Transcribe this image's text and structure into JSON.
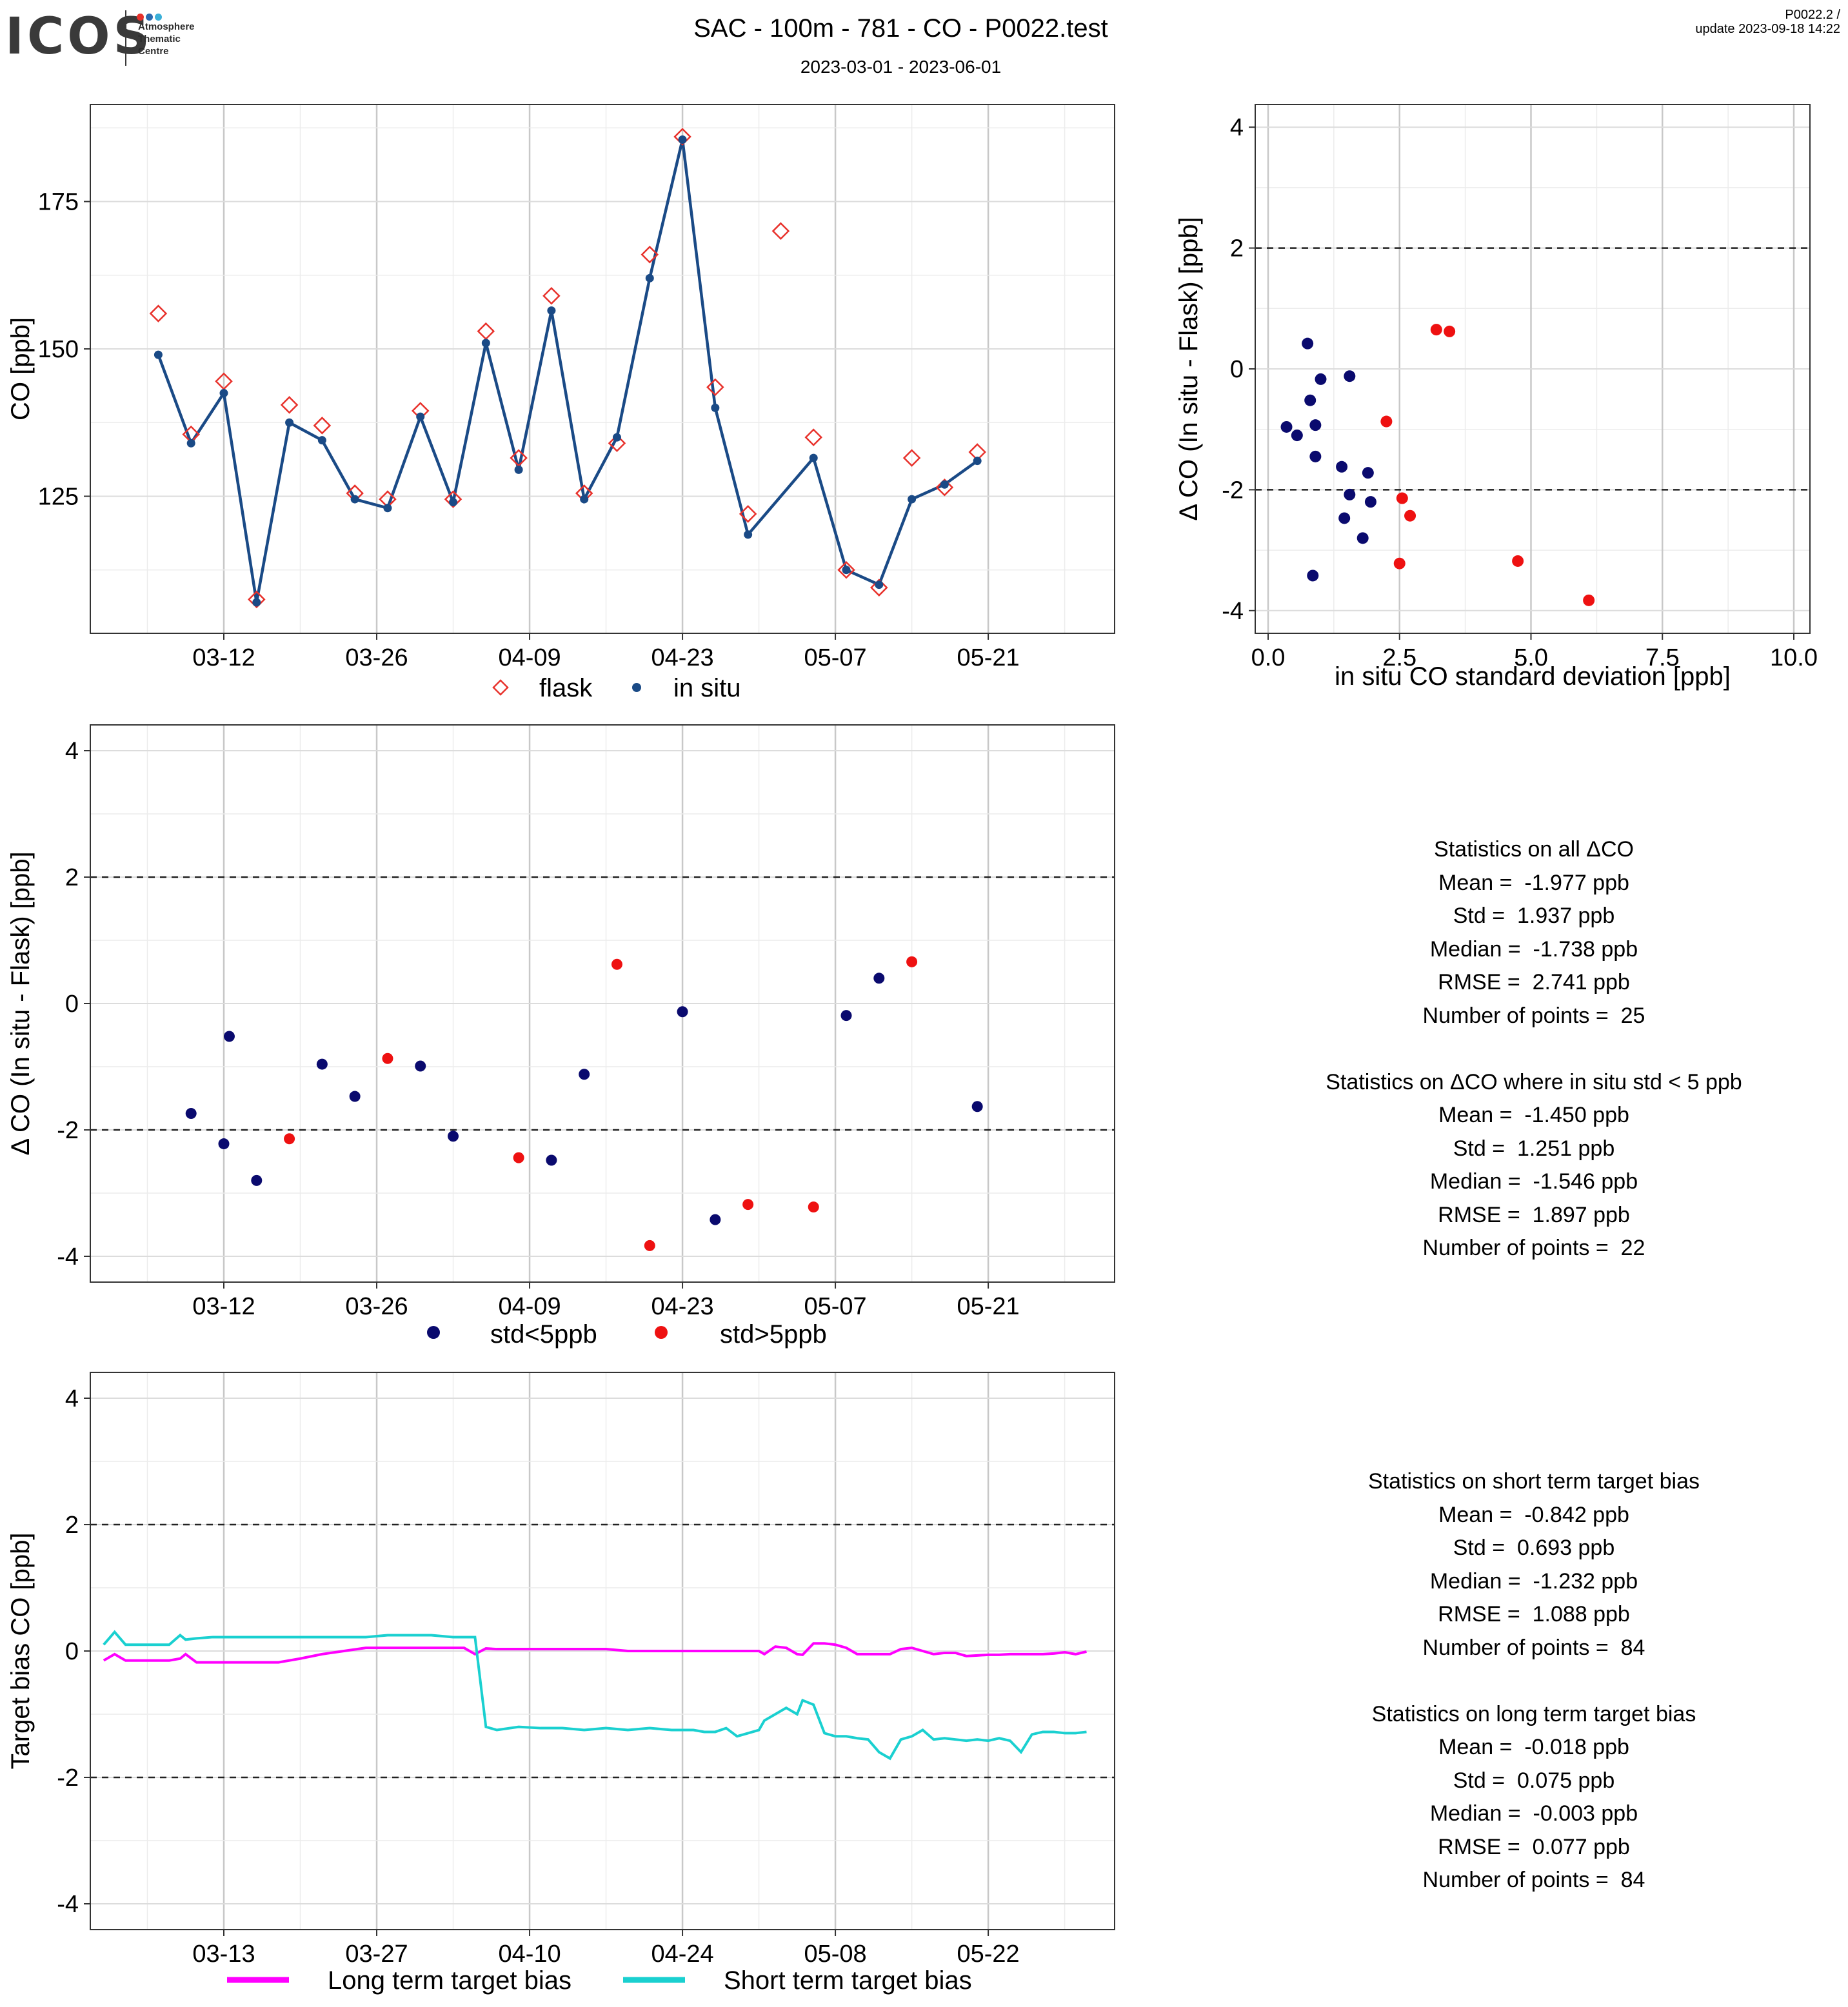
{
  "header": {
    "logo_text": "ICOS",
    "logo_subtext": [
      "Atmosphere",
      "Thematic",
      "Centre"
    ],
    "title": "SAC - 100m - 781 - CO - P0022.test",
    "subtitle": "2023-03-01 - 2023-06-01",
    "version_line1": "P0022.2 /",
    "version_line2": "update  2023-09-18 14:22"
  },
  "colors": {
    "flask": "#e8312b",
    "insitu": "#1a4a86",
    "std_lt5": "#0a0a6e",
    "std_gt5": "#ee1111",
    "long_term": "#ff00ff",
    "short_term": "#1ad0d0",
    "logo_dots": [
      "#e8312b",
      "#2b6cb0",
      "#3bb0d8"
    ]
  },
  "chart_data": [
    {
      "id": "co_timeseries",
      "type": "line",
      "ylabel": "CO [ppb]",
      "xlabel": "",
      "x_ticks": [
        "03-12",
        "03-26",
        "04-09",
        "04-23",
        "05-07",
        "05-21"
      ],
      "y_ticks": [
        125,
        150,
        175
      ],
      "ylim": [
        102,
        192
      ],
      "legend": {
        "position": "bottom",
        "entries": [
          "flask",
          "in situ"
        ]
      },
      "x_unit": "days since 2023-03-01",
      "series": [
        {
          "name": "in situ",
          "style": "line+points",
          "x": [
            5,
            8,
            11,
            14,
            17,
            20,
            23,
            26,
            29,
            32,
            35,
            38,
            41,
            44,
            47,
            50,
            53,
            56,
            59,
            65,
            68,
            71,
            74,
            77,
            80
          ],
          "y": [
            149,
            134,
            142.5,
            107,
            137.5,
            134.5,
            124.5,
            123,
            138.5,
            124,
            151,
            129.5,
            156.5,
            124.5,
            135,
            162,
            185.5,
            140,
            118.5,
            131.5,
            112.5,
            110,
            124.5,
            127,
            131
          ]
        },
        {
          "name": "flask",
          "style": "open-diamonds",
          "x": [
            5,
            8,
            11,
            14,
            17,
            20,
            23,
            26,
            29,
            32,
            35,
            38,
            41,
            44,
            47,
            50,
            53,
            56,
            59,
            62,
            65,
            68,
            71,
            74,
            77,
            80
          ],
          "y": [
            156,
            135.5,
            144.5,
            107.5,
            140.5,
            137,
            125.5,
            124.5,
            139.5,
            124.5,
            153,
            131.5,
            159,
            125.5,
            134,
            166,
            186,
            143.5,
            122,
            170,
            135,
            112.5,
            109.5,
            131.5,
            126.5,
            132.5
          ]
        }
      ]
    },
    {
      "id": "delta_vs_std",
      "type": "scatter",
      "xlabel": "in situ CO standard deviation [ppb]",
      "ylabel": "Δ CO (In situ - Flask) [ppb]",
      "xlim": [
        -0.3,
        10.3
      ],
      "ylim": [
        -4.4,
        4.4
      ],
      "x_ticks": [
        0.0,
        2.5,
        5.0,
        7.5,
        10.0
      ],
      "x_tick_labels": [
        "0.0",
        "2.5",
        "5.0",
        "7.5",
        "10.0"
      ],
      "y_ticks": [
        -4,
        -2,
        0,
        2,
        4
      ],
      "y_tick_labels": [
        "-4",
        "-2",
        "0",
        "2",
        "4"
      ],
      "reference_lines": [
        2,
        -2
      ],
      "series": [
        {
          "name": "std<5ppb",
          "points": [
            [
              0.75,
              0.42
            ],
            [
              0.35,
              -0.96
            ],
            [
              0.55,
              -1.1
            ],
            [
              1.0,
              -0.17
            ],
            [
              0.8,
              -0.52
            ],
            [
              0.9,
              -0.93
            ],
            [
              0.9,
              -1.45
            ],
            [
              1.55,
              -0.12
            ],
            [
              1.4,
              -1.62
            ],
            [
              1.55,
              -2.08
            ],
            [
              1.9,
              -1.72
            ],
            [
              1.95,
              -2.2
            ],
            [
              1.45,
              -2.47
            ],
            [
              1.8,
              -2.8
            ],
            [
              0.85,
              -3.42
            ]
          ]
        },
        {
          "name": "std>5ppb",
          "points": [
            [
              2.25,
              -0.87
            ],
            [
              3.2,
              0.65
            ],
            [
              3.45,
              0.62
            ],
            [
              2.55,
              -2.14
            ],
            [
              2.7,
              -2.43
            ],
            [
              2.5,
              -3.22
            ],
            [
              4.75,
              -3.18
            ],
            [
              6.1,
              -3.83
            ]
          ]
        }
      ]
    },
    {
      "id": "delta_timeseries",
      "type": "scatter",
      "ylabel": "Δ CO (In situ - Flask) [ppb]",
      "xlabel": "",
      "x_ticks": [
        "03-12",
        "03-26",
        "04-09",
        "04-23",
        "05-07",
        "05-21"
      ],
      "y_ticks": [
        -4,
        -2,
        0,
        2,
        4
      ],
      "y_tick_labels": [
        "-4",
        "-2",
        "0",
        "2",
        "4"
      ],
      "ylim": [
        -4.4,
        4.4
      ],
      "reference_lines": [
        2,
        -2
      ],
      "legend": {
        "position": "bottom",
        "entries": [
          "std<5ppb",
          "std>5ppb"
        ]
      },
      "x_unit": "days since 2023-03-01",
      "series": [
        {
          "name": "std<5ppb",
          "x": [
            8,
            11,
            11.5,
            14,
            20,
            23,
            29,
            32,
            41,
            44,
            53,
            56,
            68,
            71,
            80
          ],
          "y": [
            -1.74,
            -2.22,
            -0.52,
            -2.8,
            -0.96,
            -1.47,
            -0.99,
            -2.1,
            -2.48,
            -1.12,
            -0.13,
            -3.42,
            -0.19,
            0.4,
            -1.63
          ]
        },
        {
          "name": "std>5ppb",
          "x": [
            17,
            26,
            38,
            47,
            50,
            59,
            65,
            74
          ],
          "y": [
            -2.14,
            -0.87,
            -2.44,
            0.62,
            -3.83,
            -3.18,
            -3.22,
            0.66
          ]
        }
      ]
    },
    {
      "id": "target_bias",
      "type": "line",
      "ylabel": "Target bias CO [ppb]",
      "xlabel": "",
      "x_ticks": [
        "03-13",
        "03-27",
        "04-10",
        "04-24",
        "05-08",
        "05-22"
      ],
      "y_ticks": [
        -4,
        -2,
        0,
        2,
        4
      ],
      "y_tick_labels": [
        "-4",
        "-2",
        "0",
        "2",
        "4"
      ],
      "ylim": [
        -4.4,
        4.4
      ],
      "reference_lines": [
        2,
        -2
      ],
      "legend": {
        "position": "bottom",
        "entries": [
          "Long term target bias",
          "Short term target bias"
        ]
      },
      "x_unit": "days since 2023-03-01",
      "series": [
        {
          "name": "Long term target bias",
          "x": [
            1.0,
            2.0,
            3.0,
            5.0,
            6.0,
            7.0,
            8.0,
            8.5,
            9.5,
            11.0,
            13.0,
            15.0,
            17.0,
            19.0,
            21.0,
            23.0,
            25.0,
            27.0,
            29.0,
            31.0,
            33.0,
            34.0,
            35.0,
            36.0,
            37.0,
            39.0,
            41.0,
            43.0,
            45.0,
            47.0,
            49.0,
            51.0,
            53.0,
            55.0,
            56.0,
            57.0,
            58.0,
            59.0,
            60.0,
            61.0,
            61.5,
            62.5,
            63.5,
            64.5,
            65.0,
            66.0,
            67.0,
            68.0,
            69.0,
            70.0,
            71.0,
            72.0,
            73.0,
            74.0,
            75.0,
            76.0,
            77.0,
            78.0,
            79.0,
            80.0,
            81.0,
            82.0,
            83.0,
            84.0,
            85.0,
            86.0,
            87.0,
            88.0,
            89.0,
            90.0,
            91.0
          ],
          "y": [
            -0.15,
            -0.05,
            -0.15,
            -0.15,
            -0.15,
            -0.15,
            -0.12,
            -0.05,
            -0.18,
            -0.18,
            -0.18,
            -0.18,
            -0.18,
            -0.12,
            -0.05,
            0.0,
            0.05,
            0.05,
            0.05,
            0.05,
            0.05,
            0.05,
            -0.05,
            0.04,
            0.03,
            0.03,
            0.03,
            0.03,
            0.03,
            0.03,
            0.0,
            0.0,
            0.0,
            0.0,
            0.0,
            0.0,
            0.0,
            0.0,
            0.0,
            0.0,
            -0.05,
            0.07,
            0.05,
            -0.05,
            -0.06,
            0.12,
            0.12,
            0.1,
            0.05,
            -0.05,
            -0.05,
            -0.05,
            -0.05,
            0.03,
            0.05,
            0.0,
            -0.05,
            -0.03,
            -0.03,
            -0.08,
            -0.07,
            -0.06,
            -0.06,
            -0.05,
            -0.05,
            -0.05,
            -0.05,
            -0.04,
            -0.02,
            -0.05,
            -0.01
          ]
        },
        {
          "name": "Short term target bias",
          "x": [
            1.0,
            2.0,
            3.0,
            5.0,
            6.0,
            7.0,
            8.0,
            8.5,
            9.5,
            11.0,
            13.0,
            15.0,
            17.0,
            19.0,
            21.0,
            23.0,
            25.0,
            27.0,
            29.0,
            31.0,
            33.0,
            34.0,
            35.0,
            36.0,
            37.0,
            39.0,
            41.0,
            43.0,
            45.0,
            47.0,
            49.0,
            51.0,
            53.0,
            55.0,
            56.0,
            57.0,
            58.0,
            59.0,
            60.0,
            61.0,
            61.5,
            62.5,
            63.5,
            64.5,
            65.0,
            66.0,
            67.0,
            68.0,
            69.0,
            70.0,
            71.0,
            72.0,
            73.0,
            74.0,
            75.0,
            76.0,
            77.0,
            78.0,
            79.0,
            80.0,
            81.0,
            82.0,
            83.0,
            84.0,
            85.0,
            86.0,
            87.0,
            88.0,
            89.0,
            90.0,
            91.0
          ],
          "y": [
            0.1,
            0.3,
            0.1,
            0.1,
            0.1,
            0.1,
            0.25,
            0.18,
            0.2,
            0.22,
            0.22,
            0.22,
            0.22,
            0.22,
            0.22,
            0.22,
            0.22,
            0.25,
            0.25,
            0.25,
            0.22,
            0.22,
            0.22,
            -1.2,
            -1.25,
            -1.2,
            -1.22,
            -1.22,
            -1.25,
            -1.22,
            -1.25,
            -1.22,
            -1.25,
            -1.25,
            -1.28,
            -1.28,
            -1.22,
            -1.35,
            -1.3,
            -1.25,
            -1.1,
            -1.0,
            -0.9,
            -1.0,
            -0.78,
            -0.85,
            -1.3,
            -1.35,
            -1.35,
            -1.38,
            -1.4,
            -1.6,
            -1.7,
            -1.4,
            -1.35,
            -1.25,
            -1.4,
            -1.38,
            -1.4,
            -1.42,
            -1.4,
            -1.42,
            -1.38,
            -1.42,
            -1.6,
            -1.32,
            -1.28,
            -1.28,
            -1.3,
            -1.3,
            -1.28
          ]
        }
      ]
    }
  ],
  "stats_blocks": [
    {
      "id": "stats_all",
      "lines": [
        "Statistics on all ΔCO",
        "Mean =  -1.977 ppb",
        "Std =  1.937 ppb",
        "Median =  -1.738 ppb",
        "RMSE =  2.741 ppb",
        "Number of points =  25",
        "",
        "Statistics on ΔCO where in situ std < 5 ppb",
        "Mean =  -1.450 ppb",
        "Std =  1.251 ppb",
        "Median =  -1.546 ppb",
        "RMSE =  1.897 ppb",
        "Number of points =  22"
      ]
    },
    {
      "id": "stats_target",
      "lines": [
        "Statistics on short term target bias",
        "Mean =  -0.842 ppb",
        "Std =  0.693 ppb",
        "Median =  -1.232 ppb",
        "RMSE =  1.088 ppb",
        "Number of points =  84",
        "",
        "Statistics on long term target bias",
        "Mean =  -0.018 ppb",
        "Std =  0.075 ppb",
        "Median =  -0.003 ppb",
        "RMSE =  0.077 ppb",
        "Number of points =  84"
      ]
    }
  ]
}
